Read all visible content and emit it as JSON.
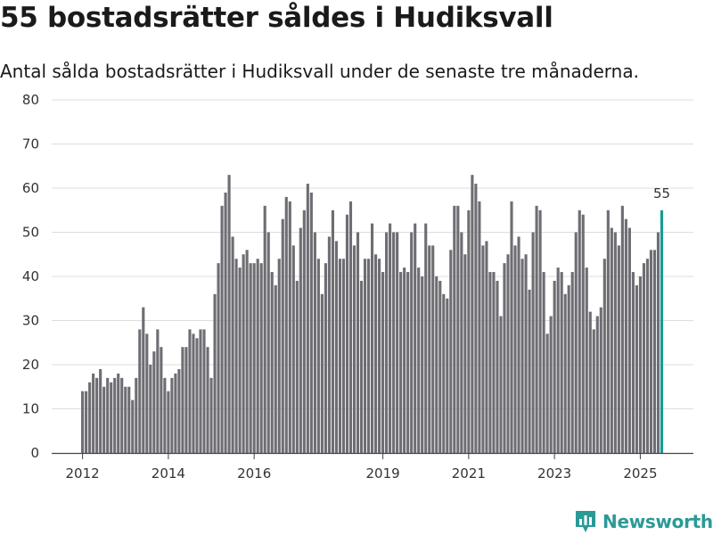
{
  "title": "55 bostadsrätter såldes i Hudiksvall",
  "subtitle": "Antal sålda bostadsrätter i Hudiksvall under de senaste tre månaderna.",
  "brand": {
    "name": "Newsworthy",
    "icon": "bar-chart-logo-icon",
    "color": "#2a9a96"
  },
  "colors": {
    "bar": "#6e6d73",
    "highlight": "#1a9a94",
    "grid": "#dddddd"
  },
  "chart_data": {
    "type": "bar",
    "title": "55 bostadsrätter såldes i Hudiksvall",
    "xlabel": "",
    "ylabel": "",
    "ylim": [
      0,
      80
    ],
    "yticks": [
      0,
      10,
      20,
      30,
      40,
      50,
      60,
      70,
      80
    ],
    "xticks": [
      "2012",
      "2014",
      "2016",
      "2019",
      "2021",
      "2023",
      "2025"
    ],
    "start": "2012-01",
    "end": "2025-09",
    "grid": true,
    "legend": "none",
    "highlight_label": "55",
    "values": [
      14,
      14,
      16,
      18,
      17,
      19,
      15,
      17,
      16,
      17,
      18,
      17,
      15,
      15,
      12,
      17,
      28,
      33,
      27,
      20,
      23,
      28,
      24,
      17,
      14,
      17,
      18,
      19,
      24,
      24,
      28,
      27,
      26,
      28,
      28,
      24,
      17,
      36,
      43,
      56,
      59,
      63,
      49,
      44,
      42,
      45,
      46,
      43,
      43,
      44,
      43,
      56,
      50,
      41,
      38,
      44,
      53,
      58,
      57,
      47,
      39,
      51,
      55,
      61,
      59,
      50,
      44,
      36,
      43,
      49,
      55,
      48,
      44,
      44,
      54,
      57,
      47,
      50,
      39,
      44,
      44,
      52,
      45,
      44,
      41,
      50,
      52,
      50,
      50,
      41,
      42,
      41,
      50,
      52,
      42,
      40,
      52,
      47,
      47,
      40,
      39,
      36,
      35,
      46,
      56,
      56,
      50,
      45,
      55,
      63,
      61,
      57,
      47,
      48,
      41,
      41,
      39,
      31,
      43,
      45,
      57,
      47,
      49,
      44,
      45,
      37,
      50,
      56,
      55,
      41,
      27,
      31,
      39,
      42,
      41,
      36,
      38,
      41,
      50,
      55,
      54,
      42,
      32,
      28,
      31,
      33,
      44,
      55,
      51,
      50,
      47,
      56,
      53,
      51,
      41,
      38,
      40,
      43,
      44,
      46,
      46,
      50,
      55
    ]
  }
}
